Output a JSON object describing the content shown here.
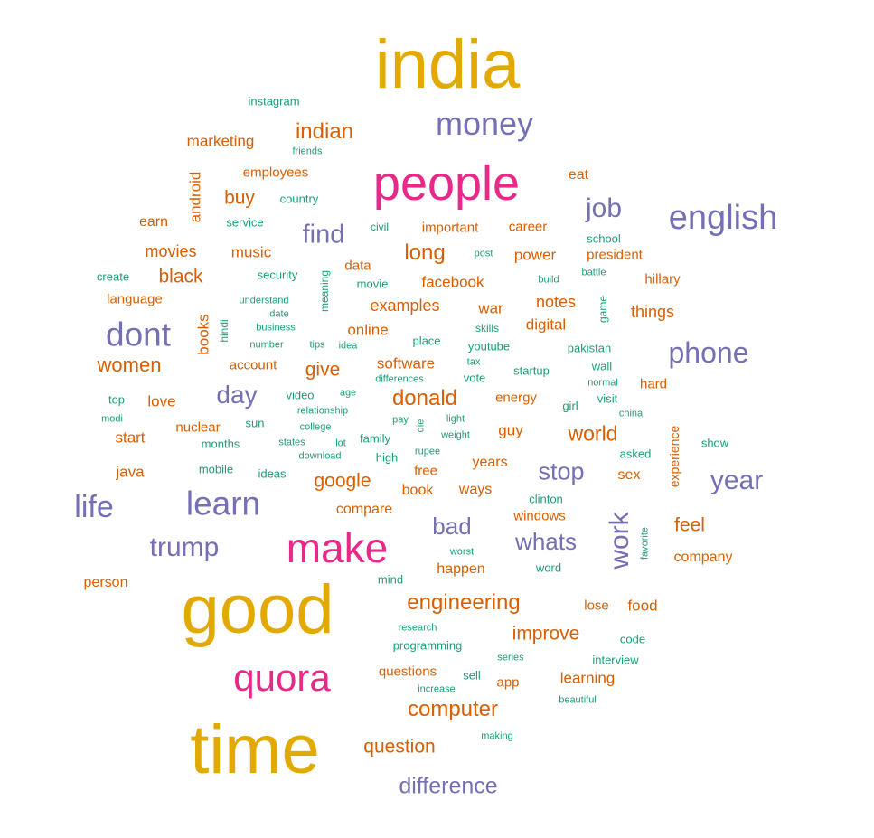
{
  "palette": {
    "gold": "#e2a900",
    "pink": "#e7298a",
    "purple": "#7570b3",
    "orange": "#d95f02",
    "teal": "#1b9e77"
  },
  "words": [
    {
      "text": "india",
      "color": "gold",
      "weight": 10
    },
    {
      "text": "good",
      "color": "gold",
      "weight": 10
    },
    {
      "text": "time",
      "color": "gold",
      "weight": 10
    },
    {
      "text": "people",
      "color": "pink",
      "weight": 8
    },
    {
      "text": "make",
      "color": "pink",
      "weight": 8
    },
    {
      "text": "quora",
      "color": "pink",
      "weight": 8
    },
    {
      "text": "money",
      "color": "purple",
      "weight": 6
    },
    {
      "text": "english",
      "color": "purple",
      "weight": 6
    },
    {
      "text": "dont",
      "color": "purple",
      "weight": 6
    },
    {
      "text": "learn",
      "color": "purple",
      "weight": 6
    },
    {
      "text": "life",
      "color": "purple",
      "weight": 6
    },
    {
      "text": "phone",
      "color": "purple",
      "weight": 6
    },
    {
      "text": "trump",
      "color": "purple",
      "weight": 5
    },
    {
      "text": "job",
      "color": "purple",
      "weight": 5
    },
    {
      "text": "find",
      "color": "purple",
      "weight": 5
    },
    {
      "text": "day",
      "color": "purple",
      "weight": 5
    },
    {
      "text": "year",
      "color": "purple",
      "weight": 5
    },
    {
      "text": "stop",
      "color": "purple",
      "weight": 5
    },
    {
      "text": "bad",
      "color": "purple",
      "weight": 5
    },
    {
      "text": "whats",
      "color": "purple",
      "weight": 5
    },
    {
      "text": "work",
      "color": "purple",
      "weight": 5
    },
    {
      "text": "difference",
      "color": "purple",
      "weight": 5
    },
    {
      "text": "indian",
      "color": "orange",
      "weight": 4
    },
    {
      "text": "donald",
      "color": "orange",
      "weight": 4
    },
    {
      "text": "engineering",
      "color": "orange",
      "weight": 4
    },
    {
      "text": "computer",
      "color": "orange",
      "weight": 4
    },
    {
      "text": "long",
      "color": "orange",
      "weight": 4
    },
    {
      "text": "world",
      "color": "orange",
      "weight": 4
    },
    {
      "text": "women",
      "color": "orange",
      "weight": 3
    },
    {
      "text": "black",
      "color": "orange",
      "weight": 3
    },
    {
      "text": "buy",
      "color": "orange",
      "weight": 3
    },
    {
      "text": "give",
      "color": "orange",
      "weight": 3
    },
    {
      "text": "google",
      "color": "orange",
      "weight": 3
    },
    {
      "text": "improve",
      "color": "orange",
      "weight": 3
    },
    {
      "text": "feel",
      "color": "orange",
      "weight": 3
    },
    {
      "text": "question",
      "color": "orange",
      "weight": 3
    },
    {
      "text": "marketing",
      "color": "orange",
      "weight": 2
    },
    {
      "text": "employees",
      "color": "orange",
      "weight": 1
    },
    {
      "text": "android",
      "color": "orange",
      "weight": 2
    },
    {
      "text": "earn",
      "color": "orange",
      "weight": 2
    },
    {
      "text": "movies",
      "color": "orange",
      "weight": 2
    },
    {
      "text": "music",
      "color": "orange",
      "weight": 2
    },
    {
      "text": "language",
      "color": "orange",
      "weight": 1
    },
    {
      "text": "books",
      "color": "orange",
      "weight": 2
    },
    {
      "text": "account",
      "color": "orange",
      "weight": 1
    },
    {
      "text": "love",
      "color": "orange",
      "weight": 2
    },
    {
      "text": "nuclear",
      "color": "orange",
      "weight": 1
    },
    {
      "text": "start",
      "color": "orange",
      "weight": 2
    },
    {
      "text": "java",
      "color": "orange",
      "weight": 2
    },
    {
      "text": "person",
      "color": "orange",
      "weight": 1
    },
    {
      "text": "compare",
      "color": "orange",
      "weight": 1
    },
    {
      "text": "important",
      "color": "orange",
      "weight": 1
    },
    {
      "text": "career",
      "color": "orange",
      "weight": 1
    },
    {
      "text": "eat",
      "color": "orange",
      "weight": 1
    },
    {
      "text": "data",
      "color": "orange",
      "weight": 1
    },
    {
      "text": "facebook",
      "color": "orange",
      "weight": 2
    },
    {
      "text": "power",
      "color": "orange",
      "weight": 2
    },
    {
      "text": "president",
      "color": "orange",
      "weight": 1
    },
    {
      "text": "hillary",
      "color": "orange",
      "weight": 1
    },
    {
      "text": "examples",
      "color": "orange",
      "weight": 2
    },
    {
      "text": "war",
      "color": "orange",
      "weight": 2
    },
    {
      "text": "notes",
      "color": "orange",
      "weight": 2
    },
    {
      "text": "things",
      "color": "orange",
      "weight": 2
    },
    {
      "text": "online",
      "color": "orange",
      "weight": 2
    },
    {
      "text": "digital",
      "color": "orange",
      "weight": 2
    },
    {
      "text": "software",
      "color": "orange",
      "weight": 2
    },
    {
      "text": "energy",
      "color": "orange",
      "weight": 1
    },
    {
      "text": "hard",
      "color": "orange",
      "weight": 1
    },
    {
      "text": "guy",
      "color": "orange",
      "weight": 2
    },
    {
      "text": "free",
      "color": "orange",
      "weight": 1
    },
    {
      "text": "years",
      "color": "orange",
      "weight": 1
    },
    {
      "text": "sex",
      "color": "orange",
      "weight": 1
    },
    {
      "text": "experience",
      "color": "orange",
      "weight": 1
    },
    {
      "text": "book",
      "color": "orange",
      "weight": 1
    },
    {
      "text": "ways",
      "color": "orange",
      "weight": 1
    },
    {
      "text": "windows",
      "color": "orange",
      "weight": 1
    },
    {
      "text": "company",
      "color": "orange",
      "weight": 1
    },
    {
      "text": "happen",
      "color": "orange",
      "weight": 1
    },
    {
      "text": "lose",
      "color": "orange",
      "weight": 1
    },
    {
      "text": "food",
      "color": "orange",
      "weight": 2
    },
    {
      "text": "questions",
      "color": "orange",
      "weight": 1
    },
    {
      "text": "app",
      "color": "orange",
      "weight": 1
    },
    {
      "text": "learning",
      "color": "orange",
      "weight": 2
    },
    {
      "text": "instagram",
      "color": "teal",
      "weight": 1
    },
    {
      "text": "friends",
      "color": "teal",
      "weight": 0
    },
    {
      "text": "country",
      "color": "teal",
      "weight": 1
    },
    {
      "text": "service",
      "color": "teal",
      "weight": 1
    },
    {
      "text": "create",
      "color": "teal",
      "weight": 1
    },
    {
      "text": "security",
      "color": "teal",
      "weight": 1
    },
    {
      "text": "understand",
      "color": "teal",
      "weight": 0
    },
    {
      "text": "business",
      "color": "teal",
      "weight": 0
    },
    {
      "text": "date",
      "color": "teal",
      "weight": 0
    },
    {
      "text": "number",
      "color": "teal",
      "weight": 0
    },
    {
      "text": "hindi",
      "color": "teal",
      "weight": 0
    },
    {
      "text": "meaning",
      "color": "teal",
      "weight": 0
    },
    {
      "text": "tips",
      "color": "teal",
      "weight": 0
    },
    {
      "text": "idea",
      "color": "teal",
      "weight": 0
    },
    {
      "text": "civil",
      "color": "teal",
      "weight": 0
    },
    {
      "text": "movie",
      "color": "teal",
      "weight": 1
    },
    {
      "text": "post",
      "color": "teal",
      "weight": 0
    },
    {
      "text": "build",
      "color": "teal",
      "weight": 0
    },
    {
      "text": "battle",
      "color": "teal",
      "weight": 0
    },
    {
      "text": "school",
      "color": "teal",
      "weight": 1
    },
    {
      "text": "game",
      "color": "teal",
      "weight": 0
    },
    {
      "text": "skills",
      "color": "teal",
      "weight": 0
    },
    {
      "text": "place",
      "color": "teal",
      "weight": 1
    },
    {
      "text": "youtube",
      "color": "teal",
      "weight": 1
    },
    {
      "text": "tax",
      "color": "teal",
      "weight": 0
    },
    {
      "text": "pakistan",
      "color": "teal",
      "weight": 1
    },
    {
      "text": "wall",
      "color": "teal",
      "weight": 1
    },
    {
      "text": "startup",
      "color": "teal",
      "weight": 1
    },
    {
      "text": "differences",
      "color": "teal",
      "weight": 0
    },
    {
      "text": "vote",
      "color": "teal",
      "weight": 1
    },
    {
      "text": "normal",
      "color": "teal",
      "weight": 0
    },
    {
      "text": "visit",
      "color": "teal",
      "weight": 1
    },
    {
      "text": "girl",
      "color": "teal",
      "weight": 1
    },
    {
      "text": "china",
      "color": "teal",
      "weight": 0
    },
    {
      "text": "top",
      "color": "teal",
      "weight": 1
    },
    {
      "text": "modi",
      "color": "teal",
      "weight": 0
    },
    {
      "text": "video",
      "color": "teal",
      "weight": 1
    },
    {
      "text": "age",
      "color": "teal",
      "weight": 0
    },
    {
      "text": "relationship",
      "color": "teal",
      "weight": 0
    },
    {
      "text": "sun",
      "color": "teal",
      "weight": 1
    },
    {
      "text": "college",
      "color": "teal",
      "weight": 0
    },
    {
      "text": "pay",
      "color": "teal",
      "weight": 0
    },
    {
      "text": "die",
      "color": "teal",
      "weight": 0
    },
    {
      "text": "light",
      "color": "teal",
      "weight": 0
    },
    {
      "text": "weight",
      "color": "teal",
      "weight": 0
    },
    {
      "text": "months",
      "color": "teal",
      "weight": 1
    },
    {
      "text": "states",
      "color": "teal",
      "weight": 0
    },
    {
      "text": "lot",
      "color": "teal",
      "weight": 0
    },
    {
      "text": "family",
      "color": "teal",
      "weight": 1
    },
    {
      "text": "rupee",
      "color": "teal",
      "weight": 0
    },
    {
      "text": "download",
      "color": "teal",
      "weight": 0
    },
    {
      "text": "high",
      "color": "teal",
      "weight": 1
    },
    {
      "text": "asked",
      "color": "teal",
      "weight": 1
    },
    {
      "text": "show",
      "color": "teal",
      "weight": 1
    },
    {
      "text": "mobile",
      "color": "teal",
      "weight": 1
    },
    {
      "text": "ideas",
      "color": "teal",
      "weight": 1
    },
    {
      "text": "clinton",
      "color": "teal",
      "weight": 1
    },
    {
      "text": "favorite",
      "color": "teal",
      "weight": 0
    },
    {
      "text": "worst",
      "color": "teal",
      "weight": 0
    },
    {
      "text": "word",
      "color": "teal",
      "weight": 1
    },
    {
      "text": "mind",
      "color": "teal",
      "weight": 1
    },
    {
      "text": "research",
      "color": "teal",
      "weight": 0
    },
    {
      "text": "programming",
      "color": "teal",
      "weight": 1
    },
    {
      "text": "code",
      "color": "teal",
      "weight": 1
    },
    {
      "text": "series",
      "color": "teal",
      "weight": 0
    },
    {
      "text": "interview",
      "color": "teal",
      "weight": 1
    },
    {
      "text": "sell",
      "color": "teal",
      "weight": 1
    },
    {
      "text": "increase",
      "color": "teal",
      "weight": 0
    },
    {
      "text": "beautiful",
      "color": "teal",
      "weight": 0
    },
    {
      "text": "making",
      "color": "teal",
      "weight": 0
    }
  ]
}
